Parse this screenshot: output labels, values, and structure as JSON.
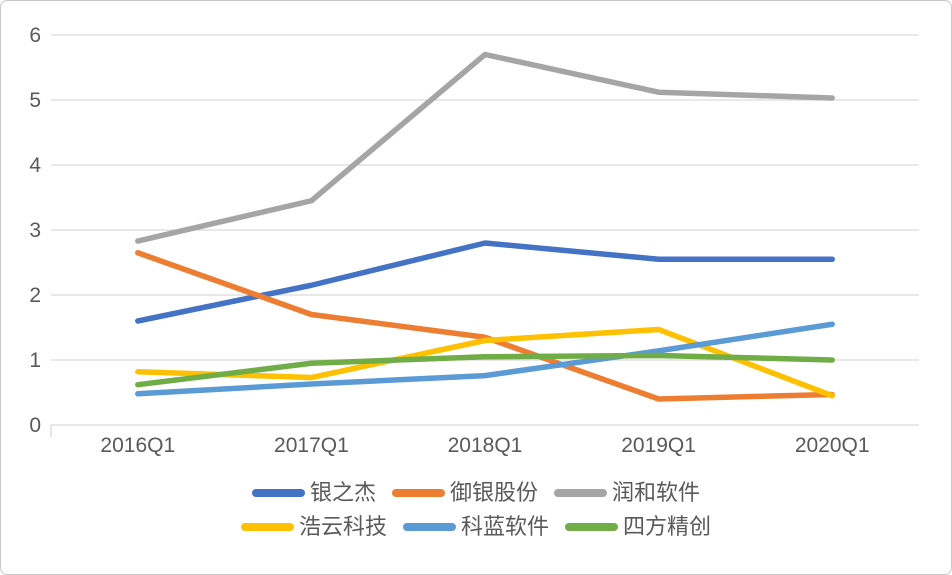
{
  "chart_data": {
    "type": "line",
    "title": "",
    "xlabel": "",
    "ylabel": "",
    "categories": [
      "2016Q1",
      "2017Q1",
      "2018Q1",
      "2019Q1",
      "2020Q1"
    ],
    "y_ticks": [
      "0",
      "1",
      "2",
      "3",
      "4",
      "5",
      "6"
    ],
    "ylim": [
      0,
      6
    ],
    "grid": "horizontal",
    "legend_position": "bottom",
    "legend_rows": 2,
    "series": [
      {
        "name": "银之杰",
        "color": "#4472C4",
        "values": [
          1.6,
          2.15,
          2.8,
          2.55,
          2.55
        ]
      },
      {
        "name": "御银股份",
        "color": "#ED7D31",
        "values": [
          2.65,
          1.7,
          1.35,
          0.4,
          0.47
        ]
      },
      {
        "name": "润和软件",
        "color": "#A5A5A5",
        "values": [
          2.83,
          3.45,
          5.7,
          5.12,
          5.03
        ]
      },
      {
        "name": "浩云科技",
        "color": "#FFC000",
        "values": [
          0.82,
          0.73,
          1.3,
          1.47,
          0.45
        ]
      },
      {
        "name": "科蓝软件",
        "color": "#5B9BD5",
        "values": [
          0.48,
          0.63,
          0.76,
          1.14,
          1.55
        ]
      },
      {
        "name": "四方精创",
        "color": "#70AD47",
        "values": [
          0.62,
          0.95,
          1.05,
          1.07,
          1.0
        ]
      }
    ],
    "colors": {
      "gridline": "#D9D9D9",
      "axis_text": "#595959",
      "background": "#FFFFFF",
      "border": "#C9C9C9"
    }
  }
}
